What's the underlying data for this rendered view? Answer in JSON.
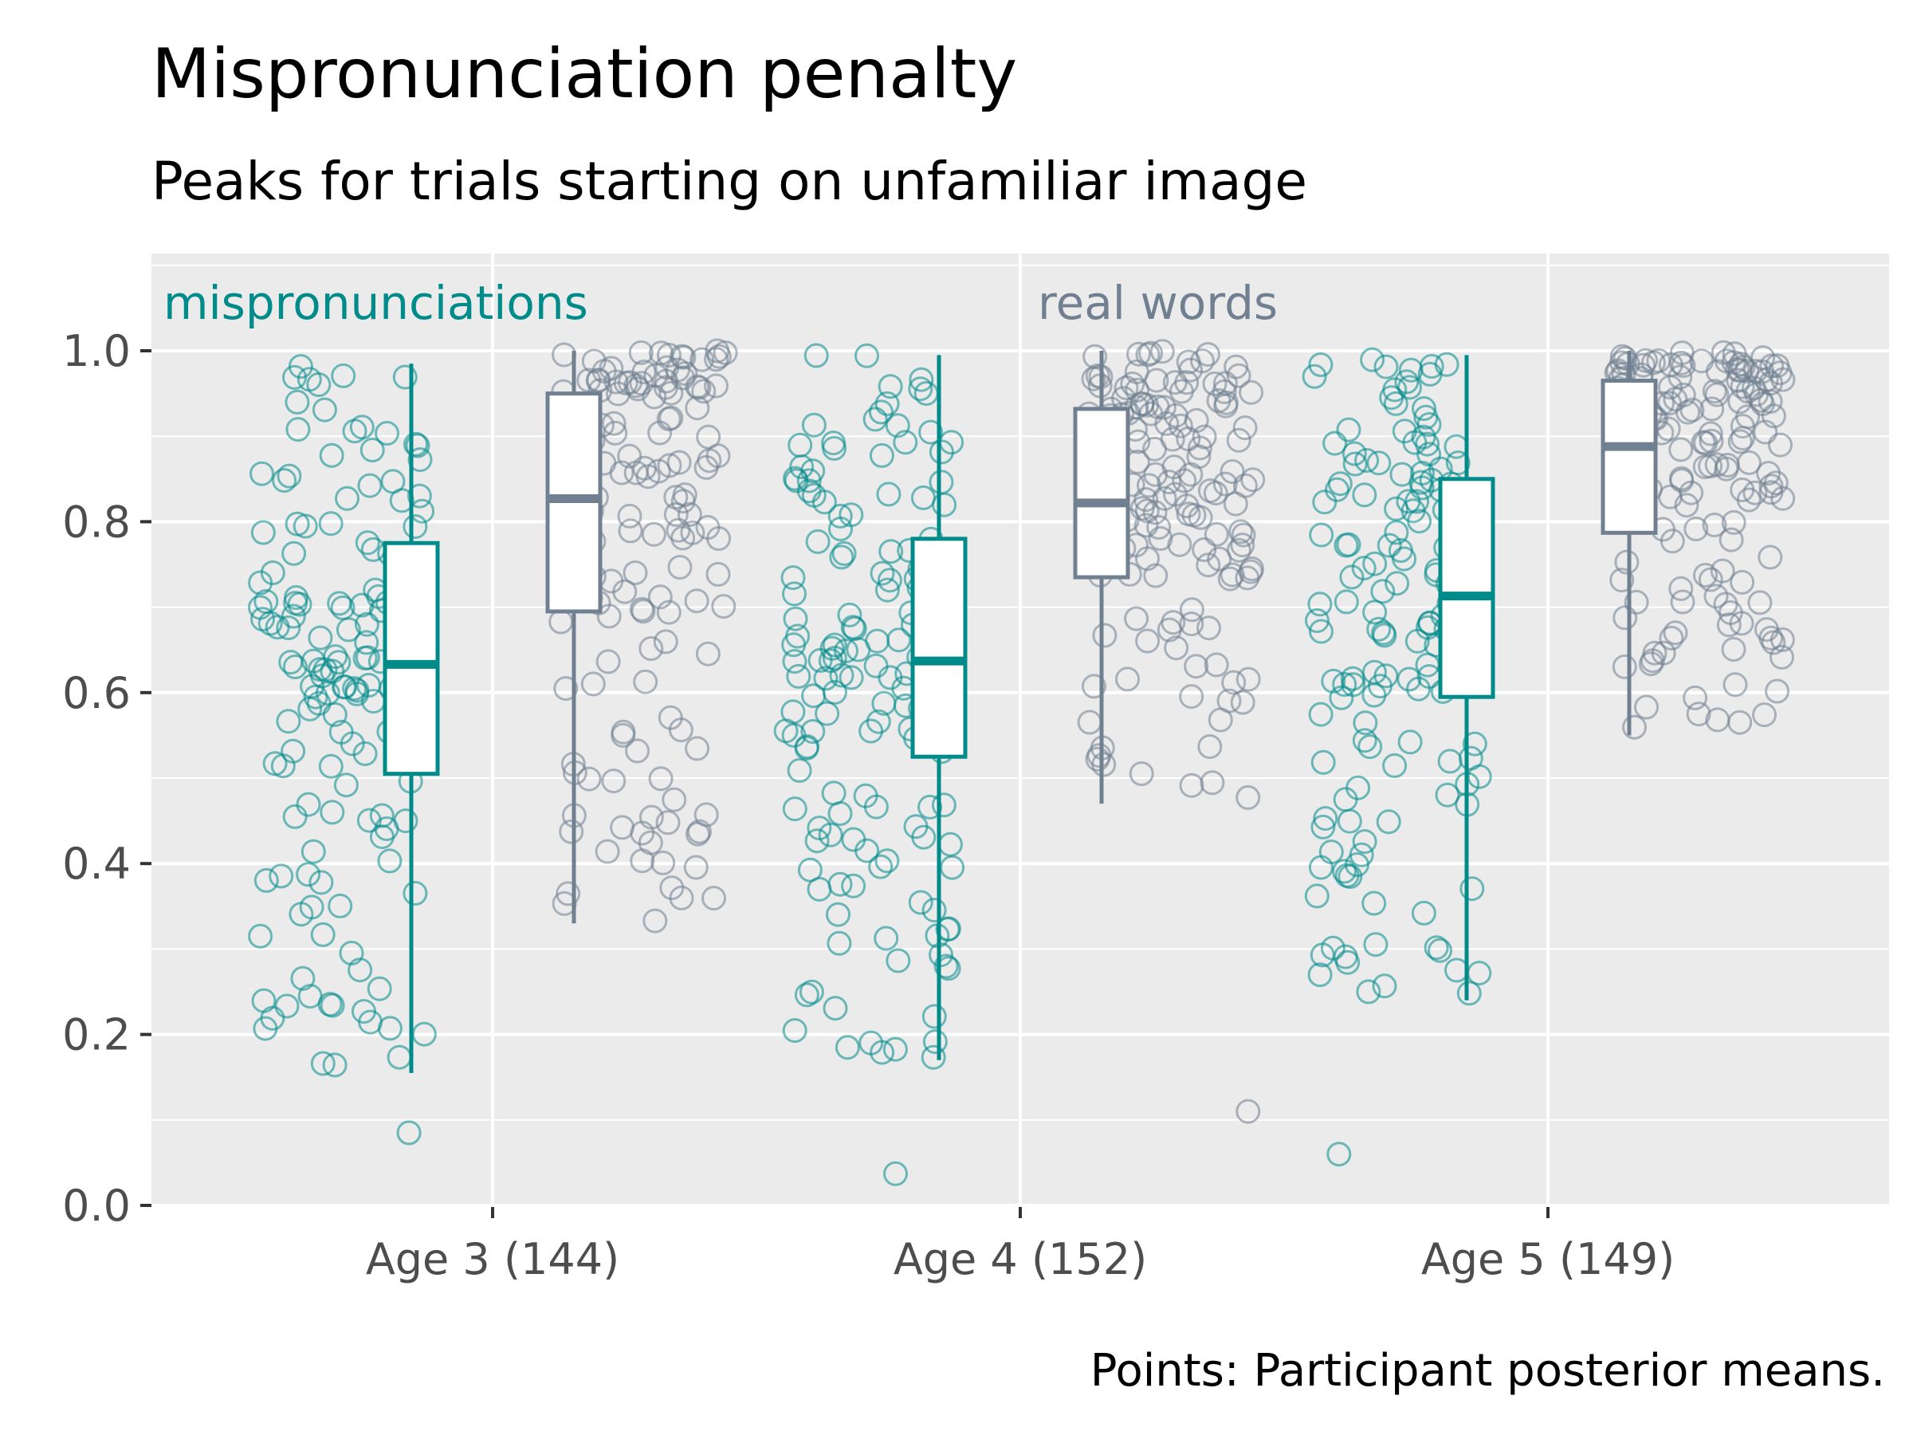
{
  "colors": {
    "mispronunciation": "#008b8b",
    "real_word": "#708090",
    "panel_bg": "#ebebeb",
    "grid": "#ffffff",
    "box_fill": "#ffffff"
  },
  "chart_data": {
    "type": "box-jitter",
    "title": "Mispronunciation penalty",
    "subtitle": "Peaks for trials starting on unfamiliar image",
    "caption": "Points: Participant posterior means.",
    "xlabel": "",
    "ylabel": "",
    "ylim": [
      0,
      1.1
    ],
    "y_ticks": [
      0.0,
      0.2,
      0.4,
      0.6,
      0.8,
      1.0
    ],
    "y_tick_labels": [
      "0.0",
      "0.2",
      "0.4",
      "0.6",
      "0.8",
      "1.0"
    ],
    "categories": [
      "Age 3 (144)",
      "Age 4 (152)",
      "Age 5 (149)"
    ],
    "annotations": [
      {
        "text": "mispronunciations",
        "series": "mispronunciations"
      },
      {
        "text": "real words",
        "series": "real words"
      }
    ],
    "legend": "none",
    "grid": true,
    "series": [
      {
        "name": "mispronunciations",
        "color_key": "mispronunciation",
        "boxes": [
          {
            "min": 0.155,
            "q1": 0.505,
            "median": 0.633,
            "q3": 0.775,
            "max": 0.985
          },
          {
            "min": 0.17,
            "q1": 0.525,
            "median": 0.637,
            "q3": 0.78,
            "max": 0.995
          },
          {
            "min": 0.24,
            "q1": 0.595,
            "median": 0.713,
            "q3": 0.85,
            "max": 0.995
          }
        ],
        "outliers": [
          [
            0.085
          ],
          [
            0.037
          ],
          [
            0.06
          ]
        ],
        "n_points": [
          144,
          152,
          149
        ]
      },
      {
        "name": "real words",
        "color_key": "real_word",
        "boxes": [
          {
            "min": 0.33,
            "q1": 0.695,
            "median": 0.827,
            "q3": 0.95,
            "max": 1.0
          },
          {
            "min": 0.47,
            "q1": 0.735,
            "median": 0.822,
            "q3": 0.932,
            "max": 1.0
          },
          {
            "min": 0.55,
            "q1": 0.787,
            "median": 0.888,
            "q3": 0.965,
            "max": 1.0
          }
        ],
        "outliers": [
          [],
          [
            0.11
          ],
          []
        ],
        "n_points": [
          144,
          152,
          149
        ]
      }
    ]
  }
}
